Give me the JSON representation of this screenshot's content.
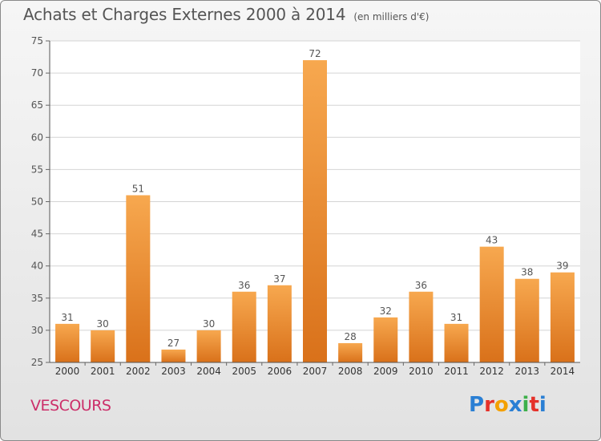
{
  "header": {
    "title": "Achats et Charges Externes 2000 à 2014",
    "subtitle": "(en milliers d'€)"
  },
  "footer": {
    "commune": "VESCOURS",
    "logo_letters": [
      "P",
      "r",
      "o",
      "x",
      "i",
      "t",
      "i"
    ]
  },
  "colors": {
    "bar_light": "#f7a84f",
    "bar_dark": "#d9711a",
    "commune_text": "#cc2f6a",
    "logo": [
      "#2a7fd4",
      "#e5312a",
      "#f4a000",
      "#2a7fd4",
      "#3db04a",
      "#e5312a",
      "#2a7fd4"
    ]
  },
  "chart_data": {
    "type": "bar",
    "title": "Achats et Charges Externes 2000 à 2014",
    "subtitle": "(en milliers d'€)",
    "categories": [
      "2000",
      "2001",
      "2002",
      "2003",
      "2004",
      "2005",
      "2006",
      "2007",
      "2008",
      "2009",
      "2010",
      "2011",
      "2012",
      "2013",
      "2014"
    ],
    "values": [
      31,
      30,
      51,
      27,
      30,
      36,
      37,
      72,
      28,
      32,
      36,
      31,
      43,
      38,
      39
    ],
    "ylim": [
      25,
      75
    ],
    "yticks": [
      25,
      30,
      35,
      40,
      45,
      50,
      55,
      60,
      65,
      70,
      75
    ],
    "grid": true,
    "data_labels": true
  }
}
